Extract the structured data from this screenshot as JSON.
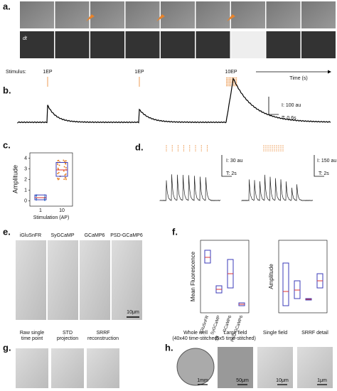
{
  "panels": {
    "a": {
      "label": "a.",
      "row_label": "dt",
      "stimulus_label": "Stimulus:",
      "stimuli": [
        "1EP",
        "1EP",
        "10EP"
      ],
      "time_label": "Time (s)"
    },
    "b": {
      "label": "b.",
      "scale_i": "I: 100 au",
      "scale_t": "T: 0.6s"
    },
    "c": {
      "label": "c.",
      "ylabel": "Amplitude",
      "xlabel": "Stimulation (AP)",
      "categories": [
        "1",
        "10"
      ],
      "yticks": [
        0,
        1,
        2,
        3,
        4
      ],
      "ylim": [
        -0.5,
        4.5
      ],
      "boxes": [
        {
          "q1": 0.1,
          "median": 0.3,
          "q3": 0.55
        },
        {
          "q1": 2.3,
          "median": 2.9,
          "q3": 3.6
        }
      ]
    },
    "d": {
      "label": "d.",
      "scale1_i": "I: 30 au",
      "scale1_t": "T: 2s",
      "scale2_i": "I: 150 au",
      "scale2_t": "T: 2s"
    },
    "e": {
      "label": "e.",
      "columns": [
        "iGluSnFR",
        "SyGCaMP",
        "GCaMP6",
        "PSD-GCaMP6"
      ],
      "scale": "10μm"
    },
    "f": {
      "label": "f.",
      "categories": [
        "iGluSnFR",
        "SyGCaMP",
        "GCaMP6",
        "PSD-GCaMP6"
      ],
      "left_ylabel": "Mean Fluorescence",
      "right_ylabel": "Amplitude",
      "left_ylim": [
        0,
        100
      ],
      "left_boxes": [
        {
          "q1": 70,
          "median": 78,
          "q3": 88
        },
        {
          "q1": 28,
          "median": 33,
          "q3": 38
        },
        {
          "q1": 35,
          "median": 55,
          "q3": 75
        },
        {
          "q1": 10,
          "median": 12,
          "q3": 14
        }
      ],
      "right_ylim": [
        0,
        100
      ],
      "right_boxes": [
        {
          "q1": 10,
          "median": 30,
          "q3": 70
        },
        {
          "q1": 20,
          "median": 32,
          "q3": 45
        },
        {
          "q1": 18,
          "median": 19,
          "q3": 20
        },
        {
          "q1": 35,
          "median": 45,
          "q3": 55
        }
      ]
    },
    "g": {
      "label": "g.",
      "columns": [
        [
          "Raw single",
          "time point"
        ],
        [
          "STD",
          "projection"
        ],
        [
          "SRRF",
          "reconstruction"
        ]
      ]
    },
    "h": {
      "label": "h.",
      "columns": [
        [
          "Whole well",
          "(40x40 time-stitched)"
        ],
        [
          "Large field",
          "(5x5 time-stitched)"
        ],
        [
          "Single field"
        ],
        [
          "SRRF detail"
        ]
      ],
      "scales": [
        "1mm",
        "50μm",
        "10μm",
        "1μm"
      ]
    }
  }
}
